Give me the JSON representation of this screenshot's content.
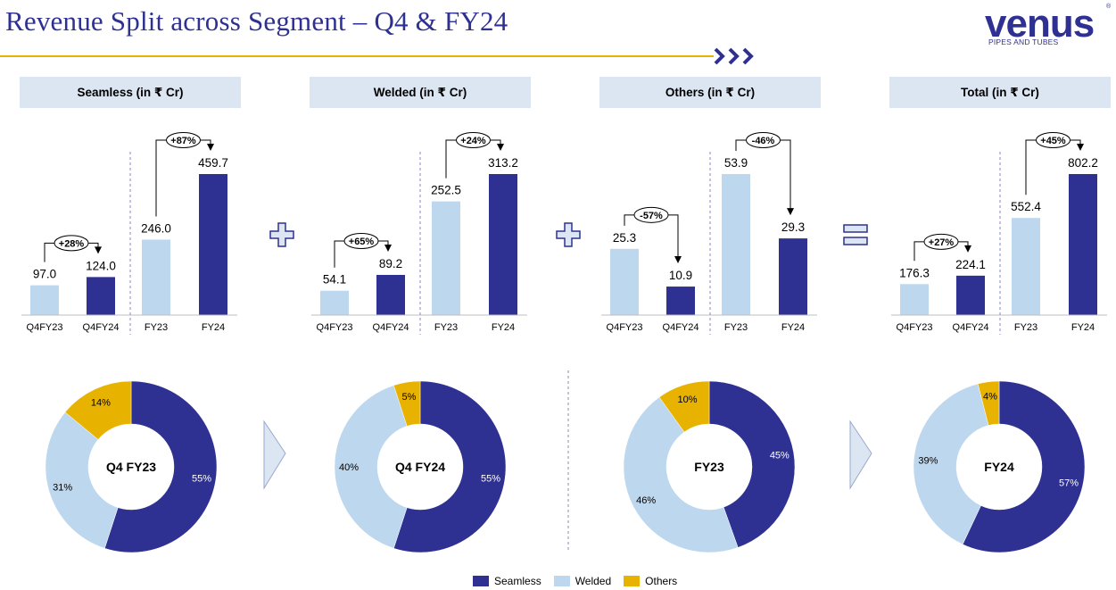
{
  "page": {
    "title": "Revenue Split across Segment – Q4 & FY24"
  },
  "logo": {
    "wordmark": "venus",
    "tagline": "PIPES AND TUBES",
    "reg": "®"
  },
  "colors": {
    "seamless": "#2e3192",
    "welded": "#bdd7ee",
    "others": "#e8b200",
    "header_bg": "#dce6f2",
    "accent": "#e8b200",
    "brand": "#2e3192"
  },
  "operators": [
    "plus-icon",
    "plus-icon",
    "equals-icon"
  ],
  "chart_data": [
    {
      "type": "bar",
      "title": "Seamless (in ₹ Cr)",
      "categories": [
        "Q4FY23",
        "Q4FY24",
        "FY23",
        "FY24"
      ],
      "values": [
        97.0,
        124.0,
        246.0,
        459.7
      ],
      "value_labels": [
        "97.0",
        "124.0",
        "246.0",
        "459.7"
      ],
      "growth": [
        {
          "label": "+28%",
          "from": 0,
          "to": 1
        },
        {
          "label": "+87%",
          "from": 2,
          "to": 3
        }
      ]
    },
    {
      "type": "bar",
      "title": "Welded (in ₹ Cr)",
      "categories": [
        "Q4FY23",
        "Q4FY24",
        "FY23",
        "FY24"
      ],
      "values": [
        54.1,
        89.2,
        252.5,
        313.2
      ],
      "value_labels": [
        "54.1",
        "89.2",
        "252.5",
        "313.2"
      ],
      "growth": [
        {
          "label": "+65%",
          "from": 0,
          "to": 1
        },
        {
          "label": "+24%",
          "from": 2,
          "to": 3
        }
      ]
    },
    {
      "type": "bar",
      "title": "Others (in ₹ Cr)",
      "categories": [
        "Q4FY23",
        "Q4FY24",
        "FY23",
        "FY24"
      ],
      "values": [
        25.3,
        10.9,
        53.9,
        29.3
      ],
      "value_labels": [
        "25.3",
        "10.9",
        "53.9",
        "29.3"
      ],
      "growth": [
        {
          "label": "-57%",
          "from": 0,
          "to": 1
        },
        {
          "label": "-46%",
          "from": 2,
          "to": 3
        }
      ]
    },
    {
      "type": "bar",
      "title": "Total (in ₹ Cr)",
      "categories": [
        "Q4FY23",
        "Q4FY24",
        "FY23",
        "FY24"
      ],
      "values": [
        176.3,
        224.1,
        552.4,
        802.2
      ],
      "value_labels": [
        "176.3",
        "224.1",
        "552.4",
        "802.2"
      ],
      "growth": [
        {
          "label": "+27%",
          "from": 0,
          "to": 1
        },
        {
          "label": "+45%",
          "from": 2,
          "to": 3
        }
      ]
    },
    {
      "type": "pie",
      "title": "Q4 FY23",
      "labels": [
        "Seamless",
        "Welded",
        "Others"
      ],
      "values": [
        55,
        31,
        14
      ],
      "value_labels": [
        "55%",
        "31%",
        "14%"
      ]
    },
    {
      "type": "pie",
      "title": "Q4 FY24",
      "labels": [
        "Seamless",
        "Welded",
        "Others"
      ],
      "values": [
        55,
        40,
        5
      ],
      "value_labels": [
        "55%",
        "40%",
        "5%"
      ]
    },
    {
      "type": "pie",
      "title": "FY23",
      "labels": [
        "Seamless",
        "Welded",
        "Others"
      ],
      "values": [
        45,
        46,
        10
      ],
      "value_labels": [
        "45%",
        "46%",
        "10%"
      ]
    },
    {
      "type": "pie",
      "title": "FY24",
      "labels": [
        "Seamless",
        "Welded",
        "Others"
      ],
      "values": [
        57,
        39,
        4
      ],
      "value_labels": [
        "57%",
        "39%",
        "4%"
      ]
    }
  ],
  "legend": [
    {
      "label": "Seamless",
      "color": "#2e3192"
    },
    {
      "label": "Welded",
      "color": "#bdd7ee"
    },
    {
      "label": "Others",
      "color": "#e8b200"
    }
  ]
}
